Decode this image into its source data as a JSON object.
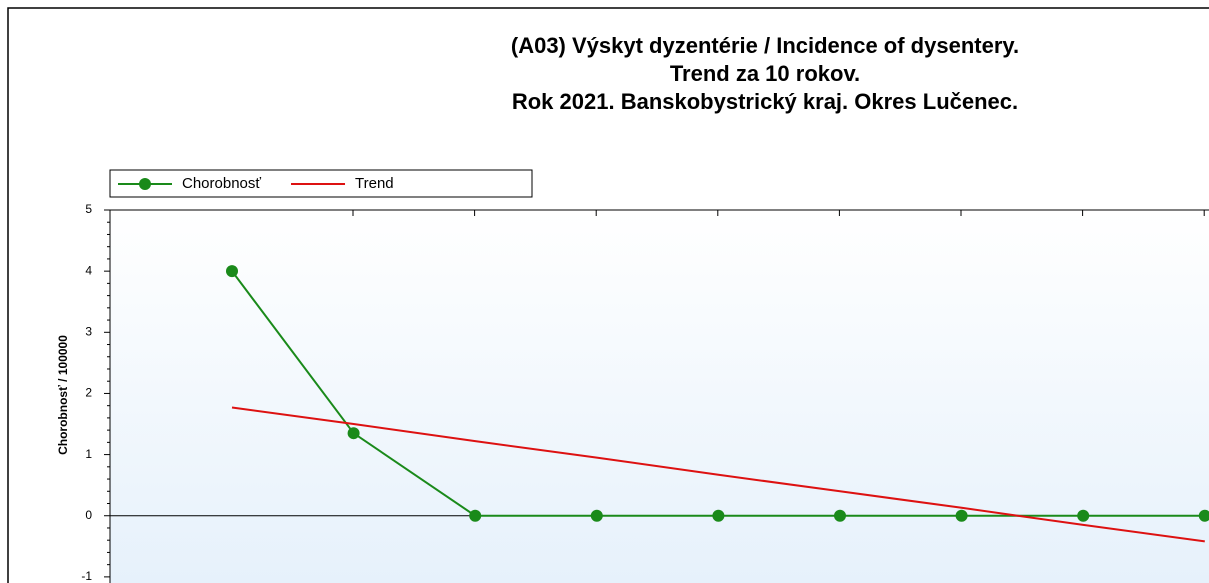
{
  "chart_data": {
    "type": "line",
    "title": [
      "(A03) Výskyt dyzentérie / Incidence of dysentery.",
      "Trend za 10 rokov.",
      "Rok 2021. Banskobystrický kraj. Okres Lučenec."
    ],
    "y_label": "Chorobnosť / 100000",
    "categories": [
      null,
      null,
      null,
      null,
      null,
      null,
      null,
      null,
      null
    ],
    "series": [
      {
        "name": "Chorobnosť",
        "color": "#1a8a1a",
        "markers": true,
        "values": [
          4,
          1.35,
          0,
          0,
          0,
          0,
          0,
          0,
          0
        ]
      },
      {
        "name": "Trend",
        "color": "#dd1111",
        "markers": false,
        "values": [
          1.77,
          1.5,
          1.22,
          0.95,
          0.67,
          0.4,
          0.13,
          -0.15,
          -0.42
        ]
      }
    ],
    "ylim": [
      -1.1,
      5
    ],
    "yticks": [
      -1,
      0,
      1,
      2,
      3,
      4,
      5
    ],
    "legend": "top-left"
  }
}
